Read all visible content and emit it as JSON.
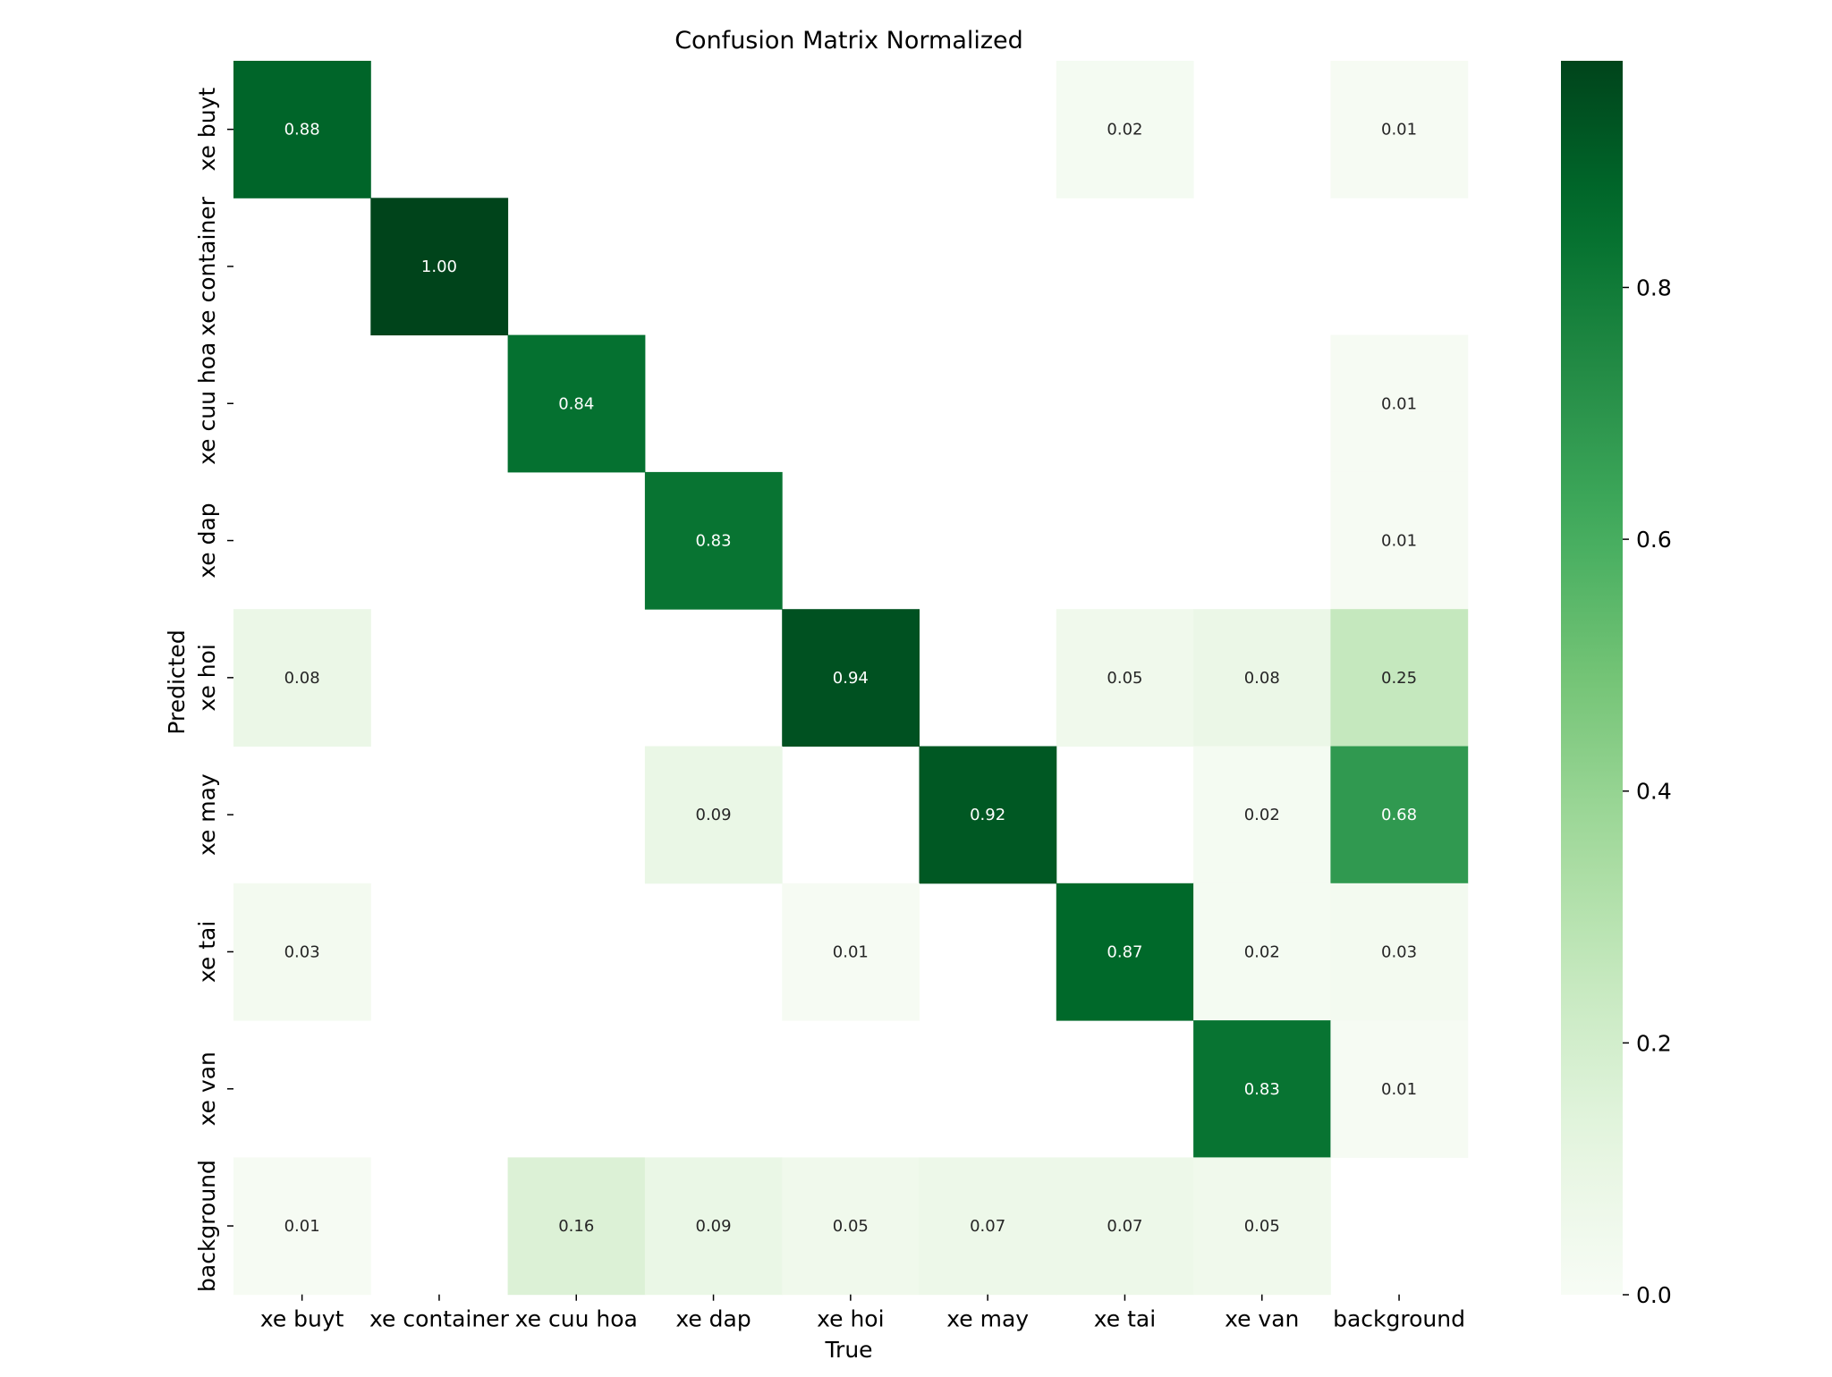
{
  "chart_data": {
    "type": "heatmap",
    "title": "Confusion Matrix Normalized",
    "xlabel": "True",
    "ylabel": "Predicted",
    "x_categories": [
      "xe buyt",
      "xe container",
      "xe cuu hoa",
      "xe dap",
      "xe hoi",
      "xe may",
      "xe tai",
      "xe van",
      "background"
    ],
    "y_categories": [
      "xe buyt",
      "xe container",
      "xe cuu hoa",
      "xe dap",
      "xe hoi",
      "xe may",
      "xe tai",
      "xe van",
      "background"
    ],
    "matrix": [
      [
        0.88,
        null,
        null,
        null,
        null,
        null,
        0.02,
        null,
        0.01
      ],
      [
        null,
        1.0,
        null,
        null,
        null,
        null,
        null,
        null,
        null
      ],
      [
        null,
        null,
        0.84,
        null,
        null,
        null,
        null,
        null,
        0.01
      ],
      [
        null,
        null,
        null,
        0.83,
        null,
        null,
        null,
        null,
        0.01
      ],
      [
        0.08,
        null,
        null,
        null,
        0.94,
        null,
        0.05,
        0.08,
        0.25
      ],
      [
        null,
        null,
        null,
        0.09,
        null,
        0.92,
        null,
        0.02,
        0.68
      ],
      [
        0.03,
        null,
        null,
        null,
        0.01,
        null,
        0.87,
        0.02,
        0.03
      ],
      [
        null,
        null,
        null,
        null,
        null,
        null,
        null,
        0.83,
        0.01
      ],
      [
        0.01,
        null,
        0.16,
        0.09,
        0.05,
        0.07,
        0.07,
        0.05,
        null
      ]
    ],
    "colormap": "Greens",
    "colorbar": {
      "min": 0.0,
      "max": 1.0,
      "ticks": [
        0.0,
        0.2,
        0.4,
        0.6,
        0.8
      ],
      "tick_labels": [
        "0.0",
        "0.2",
        "0.4",
        "0.6",
        "0.8"
      ]
    },
    "value_format": "0.00"
  }
}
